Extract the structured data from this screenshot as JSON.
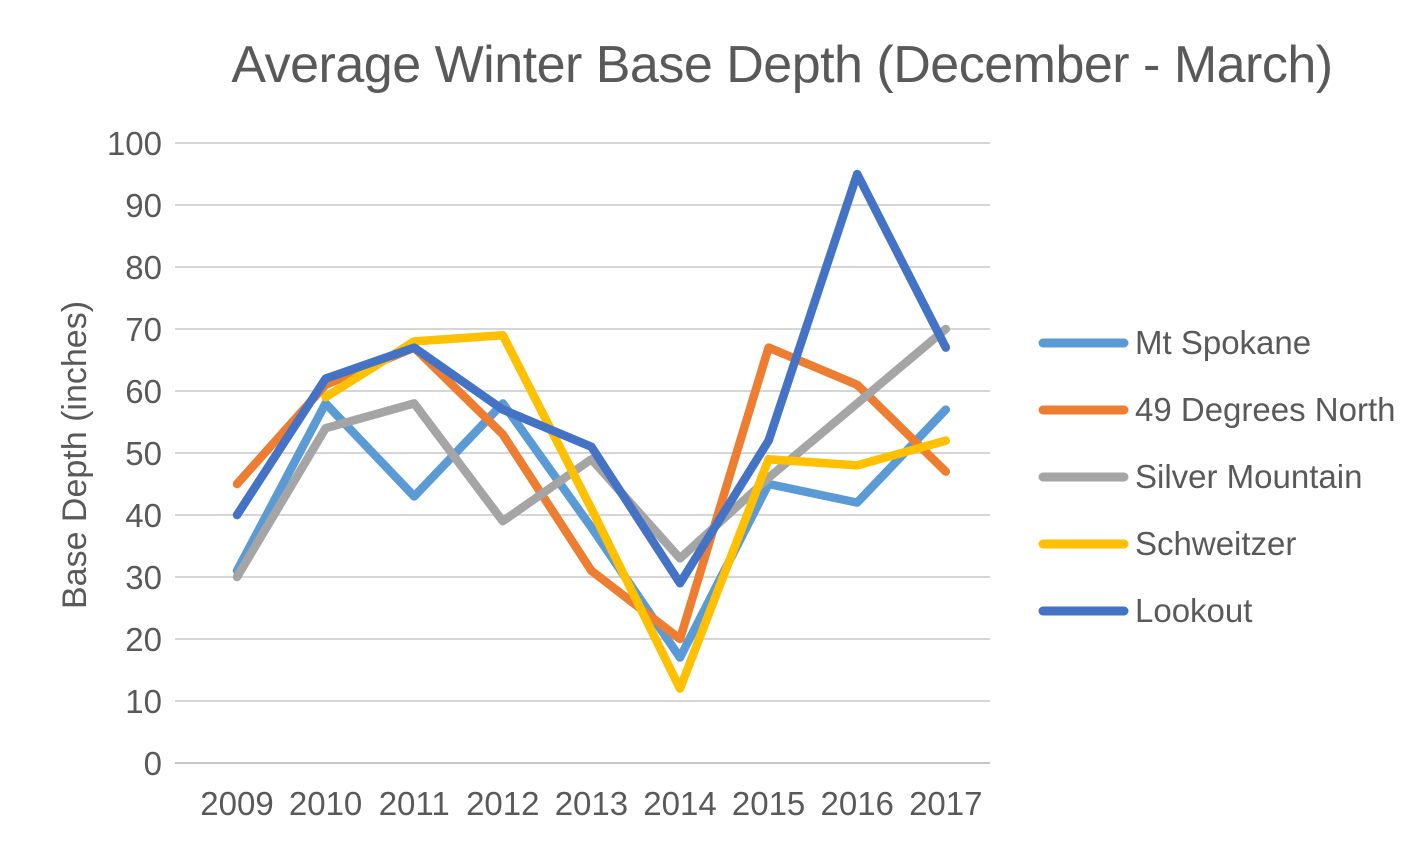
{
  "chart_data": {
    "type": "line",
    "title": "Average Winter Base Depth (December - March)",
    "ylabel": "Base Depth (inches)",
    "categories": [
      "2009",
      "2010",
      "2011",
      "2012",
      "2013",
      "2014",
      "2015",
      "2016",
      "2017"
    ],
    "y_ticks": [
      0,
      10,
      20,
      30,
      40,
      50,
      60,
      70,
      80,
      90,
      100
    ],
    "ylim": [
      0,
      100
    ],
    "grid": true,
    "legend_position": "right",
    "series": [
      {
        "name": "Mt Spokane",
        "color": "#5B9BD5",
        "values": [
          31,
          58,
          43,
          58,
          38,
          17,
          45,
          42,
          57
        ]
      },
      {
        "name": "49 Degrees North",
        "color": "#ED7D31",
        "values": [
          45,
          61,
          67,
          53,
          31,
          20,
          67,
          61,
          47
        ]
      },
      {
        "name": "Silver Mountain",
        "color": "#A5A5A5",
        "values": [
          30,
          54,
          58,
          39,
          49,
          33,
          46,
          58,
          70
        ]
      },
      {
        "name": "Schweitzer",
        "color": "#FFC000",
        "values": [
          null,
          59,
          68,
          69,
          41,
          12,
          49,
          48,
          52
        ]
      },
      {
        "name": "Lookout",
        "color": "#4472C4",
        "values": [
          40,
          62,
          67,
          57,
          51,
          29,
          52,
          95,
          67
        ]
      }
    ],
    "gridline_color": "#D6D6D6",
    "text_color": "#595959"
  }
}
